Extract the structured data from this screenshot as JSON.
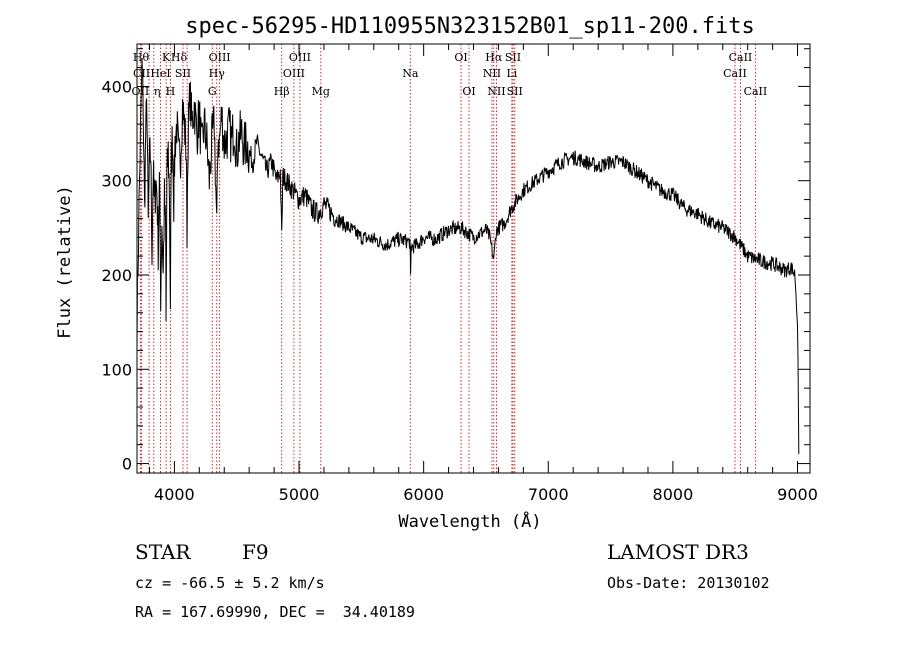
{
  "chart_data": {
    "type": "line",
    "title": "spec-56295-HD110955N323152B01_sp11-200.fits",
    "xlabel": "Wavelength (Å)",
    "ylabel": "Flux (relative)",
    "xlim": [
      3700,
      9100
    ],
    "ylim": [
      -10,
      445
    ],
    "xticks": [
      4000,
      5000,
      6000,
      7000,
      8000,
      9000
    ],
    "yticks": [
      0,
      100,
      200,
      300,
      400
    ],
    "series": [
      {
        "name": "flux",
        "x": [
          3700,
          3720,
          3740,
          3750,
          3760,
          3770,
          3780,
          3790,
          3800,
          3810,
          3820,
          3830,
          3840,
          3850,
          3860,
          3870,
          3880,
          3890,
          3900,
          3910,
          3920,
          3930,
          3933,
          3940,
          3950,
          3960,
          3968,
          3975,
          3985,
          3995,
          4005,
          4020,
          4035,
          4050,
          4065,
          4080,
          4095,
          4101,
          4110,
          4125,
          4140,
          4160,
          4180,
          4200,
          4220,
          4240,
          4260,
          4280,
          4300,
          4320,
          4340,
          4350,
          4360,
          4380,
          4400,
          4420,
          4440,
          4460,
          4480,
          4500,
          4520,
          4540,
          4560,
          4580,
          4600,
          4630,
          4660,
          4700,
          4740,
          4780,
          4820,
          4850,
          4861,
          4870,
          4900,
          4950,
          5000,
          5050,
          5100,
          5150,
          5200,
          5300,
          5400,
          5500,
          5600,
          5700,
          5800,
          5890,
          5895,
          5900,
          5950,
          6000,
          6100,
          6200,
          6300,
          6350,
          6400,
          6500,
          6530,
          6563,
          6580,
          6600,
          6650,
          6700,
          6800,
          6900,
          7000,
          7100,
          7200,
          7300,
          7400,
          7500,
          7600,
          7700,
          7800,
          7900,
          8000,
          8100,
          8200,
          8300,
          8400,
          8500,
          8550,
          8600,
          8700,
          8800,
          8900,
          8950,
          8980,
          9000,
          9010
        ],
        "values": [
          150,
          300,
          420,
          380,
          270,
          350,
          380,
          250,
          320,
          330,
          230,
          310,
          270,
          300,
          290,
          230,
          300,
          180,
          260,
          200,
          280,
          240,
          150,
          300,
          330,
          290,
          170,
          320,
          350,
          280,
          340,
          360,
          320,
          330,
          380,
          360,
          330,
          250,
          350,
          390,
          360,
          380,
          350,
          370,
          330,
          360,
          340,
          300,
          340,
          360,
          250,
          350,
          340,
          370,
          340,
          345,
          355,
          340,
          360,
          330,
          345,
          350,
          335,
          340,
          330,
          320,
          340,
          325,
          310,
          320,
          300,
          310,
          240,
          305,
          300,
          290,
          280,
          285,
          270,
          265,
          275,
          260,
          250,
          240,
          238,
          232,
          238,
          235,
          195,
          230,
          232,
          240,
          238,
          248,
          250,
          245,
          240,
          248,
          240,
          215,
          245,
          250,
          255,
          270,
          290,
          300,
          310,
          320,
          325,
          320,
          315,
          320,
          320,
          310,
          300,
          290,
          285,
          270,
          265,
          255,
          250,
          240,
          230,
          220,
          215,
          212,
          205,
          208,
          200,
          150,
          10
        ]
      }
    ],
    "spectral_lines": [
      {
        "label": "H&#952;",
        "x": 3797,
        "row": 0,
        "ha": "right"
      },
      {
        "label": "OII",
        "x": 3727,
        "row": 2,
        "ha": "center"
      },
      {
        "label": "CII",
        "x": 3737,
        "row": 1,
        "ha": "center"
      },
      {
        "label": "&#951;",
        "x": 3835,
        "row": 2,
        "ha": "left"
      },
      {
        "label": "HeI",
        "x": 3889,
        "row": 1,
        "ha": "center"
      },
      {
        "label": "K",
        "x": 3934,
        "row": 0,
        "ha": "center"
      },
      {
        "label": "H",
        "x": 3968,
        "row": 2,
        "ha": "center"
      },
      {
        "label": "H&#948;",
        "x": 4102,
        "row": 0,
        "ha": "right"
      },
      {
        "label": "SII",
        "x": 4069,
        "row": 1,
        "ha": "center"
      },
      {
        "label": "OIII",
        "x": 4363,
        "row": 0,
        "ha": "center"
      },
      {
        "label": "H&#947;",
        "x": 4340,
        "row": 1,
        "ha": "center"
      },
      {
        "label": "G",
        "x": 4304,
        "row": 2,
        "ha": "center"
      },
      {
        "label": "H&#946;",
        "x": 4861,
        "row": 2,
        "ha": "center"
      },
      {
        "label": "OIII",
        "x": 5007,
        "row": 0,
        "ha": "center"
      },
      {
        "label": "OIII",
        "x": 4959,
        "row": 1,
        "ha": "center"
      },
      {
        "label": "Mg",
        "x": 5175,
        "row": 2,
        "ha": "center"
      },
      {
        "label": "Na",
        "x": 5893,
        "row": 1,
        "ha": "center"
      },
      {
        "label": "OI",
        "x": 6300,
        "row": 0,
        "ha": "center"
      },
      {
        "label": "OI",
        "x": 6364,
        "row": 2,
        "ha": "center"
      },
      {
        "label": "H&#945;",
        "x": 6563,
        "row": 0,
        "ha": "center"
      },
      {
        "label": "NII",
        "x": 6548,
        "row": 1,
        "ha": "center"
      },
      {
        "label": "NII",
        "x": 6584,
        "row": 2,
        "ha": "center"
      },
      {
        "label": "SII",
        "x": 6717,
        "row": 0,
        "ha": "center"
      },
      {
        "label": "Li",
        "x": 6708,
        "row": 1,
        "ha": "center"
      },
      {
        "label": "SII",
        "x": 6731,
        "row": 2,
        "ha": "center"
      },
      {
        "label": "CaII",
        "x": 8542,
        "row": 0,
        "ha": "center"
      },
      {
        "label": "CaII",
        "x": 8498,
        "row": 1,
        "ha": "center"
      },
      {
        "label": "CaII",
        "x": 8662,
        "row": 2,
        "ha": "center"
      }
    ]
  },
  "info": {
    "object_class": "STAR",
    "subclass": "F9",
    "survey": "LAMOST DR3",
    "cz": "cz = -66.5 ± 5.2 km/s",
    "obs_date": "Obs-Date: 20130102",
    "coords": "RA = 167.69990, DEC =  34.40189"
  }
}
